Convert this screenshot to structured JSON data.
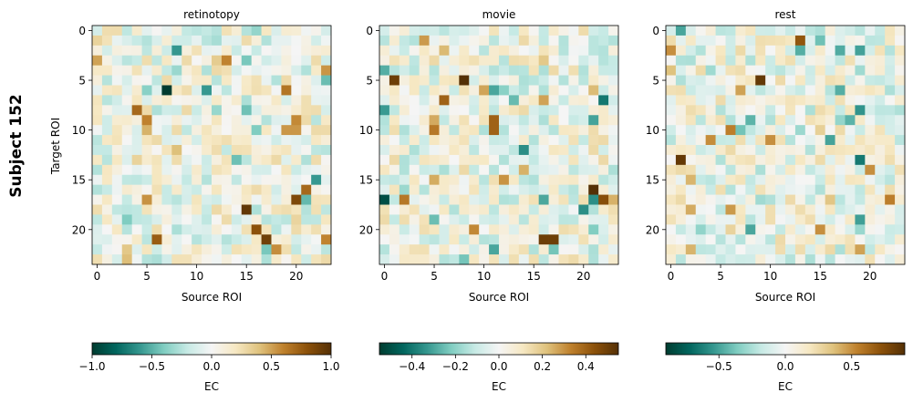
{
  "figure": {
    "suptitle": "Subject 152"
  },
  "chart_data": [
    {
      "type": "heatmap",
      "title": "retinotopy",
      "xlabel": "Source ROI",
      "ylabel": "Target ROI",
      "grid_size": 24,
      "x_ticks": [
        "0",
        "5",
        "10",
        "15",
        "20"
      ],
      "y_ticks": [
        "0",
        "5",
        "10",
        "15",
        "20"
      ],
      "colormap": "BrBG_r",
      "vmin": -1.0,
      "vmax": 1.0,
      "colorbar": {
        "label": "EC",
        "ticks": [
          -1.0,
          -0.5,
          0.0,
          0.5,
          1.0
        ],
        "tick_labels": [
          "−1.0",
          "−0.5",
          "0.0",
          "0.5",
          "1.0"
        ]
      },
      "seed": 11,
      "peaks": [
        [
          6,
          7,
          -1.0
        ],
        [
          8,
          4,
          0.7
        ],
        [
          21,
          6,
          0.75
        ],
        [
          18,
          15,
          0.95
        ],
        [
          20,
          16,
          0.8
        ],
        [
          21,
          17,
          0.9
        ],
        [
          17,
          20,
          0.85
        ],
        [
          16,
          21,
          0.7
        ],
        [
          9,
          5,
          0.6
        ],
        [
          6,
          19,
          0.65
        ],
        [
          3,
          0,
          0.5
        ],
        [
          13,
          14,
          -0.45
        ],
        [
          10,
          16,
          -0.4
        ],
        [
          19,
          3,
          -0.4
        ]
      ]
    },
    {
      "type": "heatmap",
      "title": "movie",
      "xlabel": "Source ROI",
      "ylabel": "",
      "grid_size": 24,
      "x_ticks": [
        "0",
        "5",
        "10",
        "15",
        "20"
      ],
      "y_ticks": [
        "0",
        "5",
        "10",
        "15",
        "20"
      ],
      "colormap": "BrBG_r",
      "vmin": -0.55,
      "vmax": 0.55,
      "colorbar": {
        "label": "EC",
        "ticks": [
          -0.4,
          -0.2,
          0.0,
          0.2,
          0.4
        ],
        "tick_labels": [
          "−0.4",
          "−0.2",
          "0.0",
          "0.2",
          "0.4"
        ]
      },
      "seed": 23,
      "peaks": [
        [
          5,
          1,
          0.5
        ],
        [
          17,
          0,
          -0.5
        ],
        [
          5,
          8,
          0.55
        ],
        [
          7,
          6,
          0.4
        ],
        [
          10,
          5,
          0.35
        ],
        [
          16,
          21,
          0.55
        ],
        [
          21,
          17,
          0.5
        ],
        [
          17,
          22,
          0.45
        ],
        [
          9,
          11,
          0.4
        ],
        [
          10,
          11,
          0.4
        ],
        [
          17,
          2,
          0.35
        ],
        [
          7,
          22,
          -0.4
        ],
        [
          12,
          14,
          -0.35
        ],
        [
          17,
          21,
          -0.35
        ],
        [
          18,
          20,
          -0.35
        ],
        [
          21,
          16,
          0.5
        ],
        [
          6,
          11,
          -0.3
        ],
        [
          22,
          11,
          -0.3
        ]
      ]
    },
    {
      "type": "heatmap",
      "title": "rest",
      "xlabel": "Source ROI",
      "ylabel": "",
      "grid_size": 24,
      "x_ticks": [
        "0",
        "5",
        "10",
        "15",
        "20"
      ],
      "y_ticks": [
        "0",
        "5",
        "10",
        "15",
        "20"
      ],
      "colormap": "BrBG_r",
      "vmin": -0.9,
      "vmax": 0.9,
      "colorbar": {
        "label": "EC",
        "ticks": [
          -0.5,
          0.0,
          0.5
        ],
        "tick_labels": [
          "−0.5",
          "0.0",
          "0.5"
        ]
      },
      "seed": 37,
      "peaks": [
        [
          13,
          1,
          0.85
        ],
        [
          5,
          9,
          0.85
        ],
        [
          1,
          13,
          0.7
        ],
        [
          10,
          6,
          0.55
        ],
        [
          2,
          0,
          0.5
        ],
        [
          11,
          10,
          0.5
        ],
        [
          13,
          19,
          -0.65
        ],
        [
          8,
          19,
          -0.55
        ],
        [
          11,
          16,
          -0.5
        ],
        [
          17,
          22,
          0.55
        ],
        [
          14,
          20,
          0.5
        ],
        [
          22,
          19,
          0.45
        ],
        [
          20,
          15,
          0.5
        ],
        [
          6,
          7,
          0.45
        ],
        [
          1,
          15,
          -0.4
        ]
      ]
    }
  ]
}
